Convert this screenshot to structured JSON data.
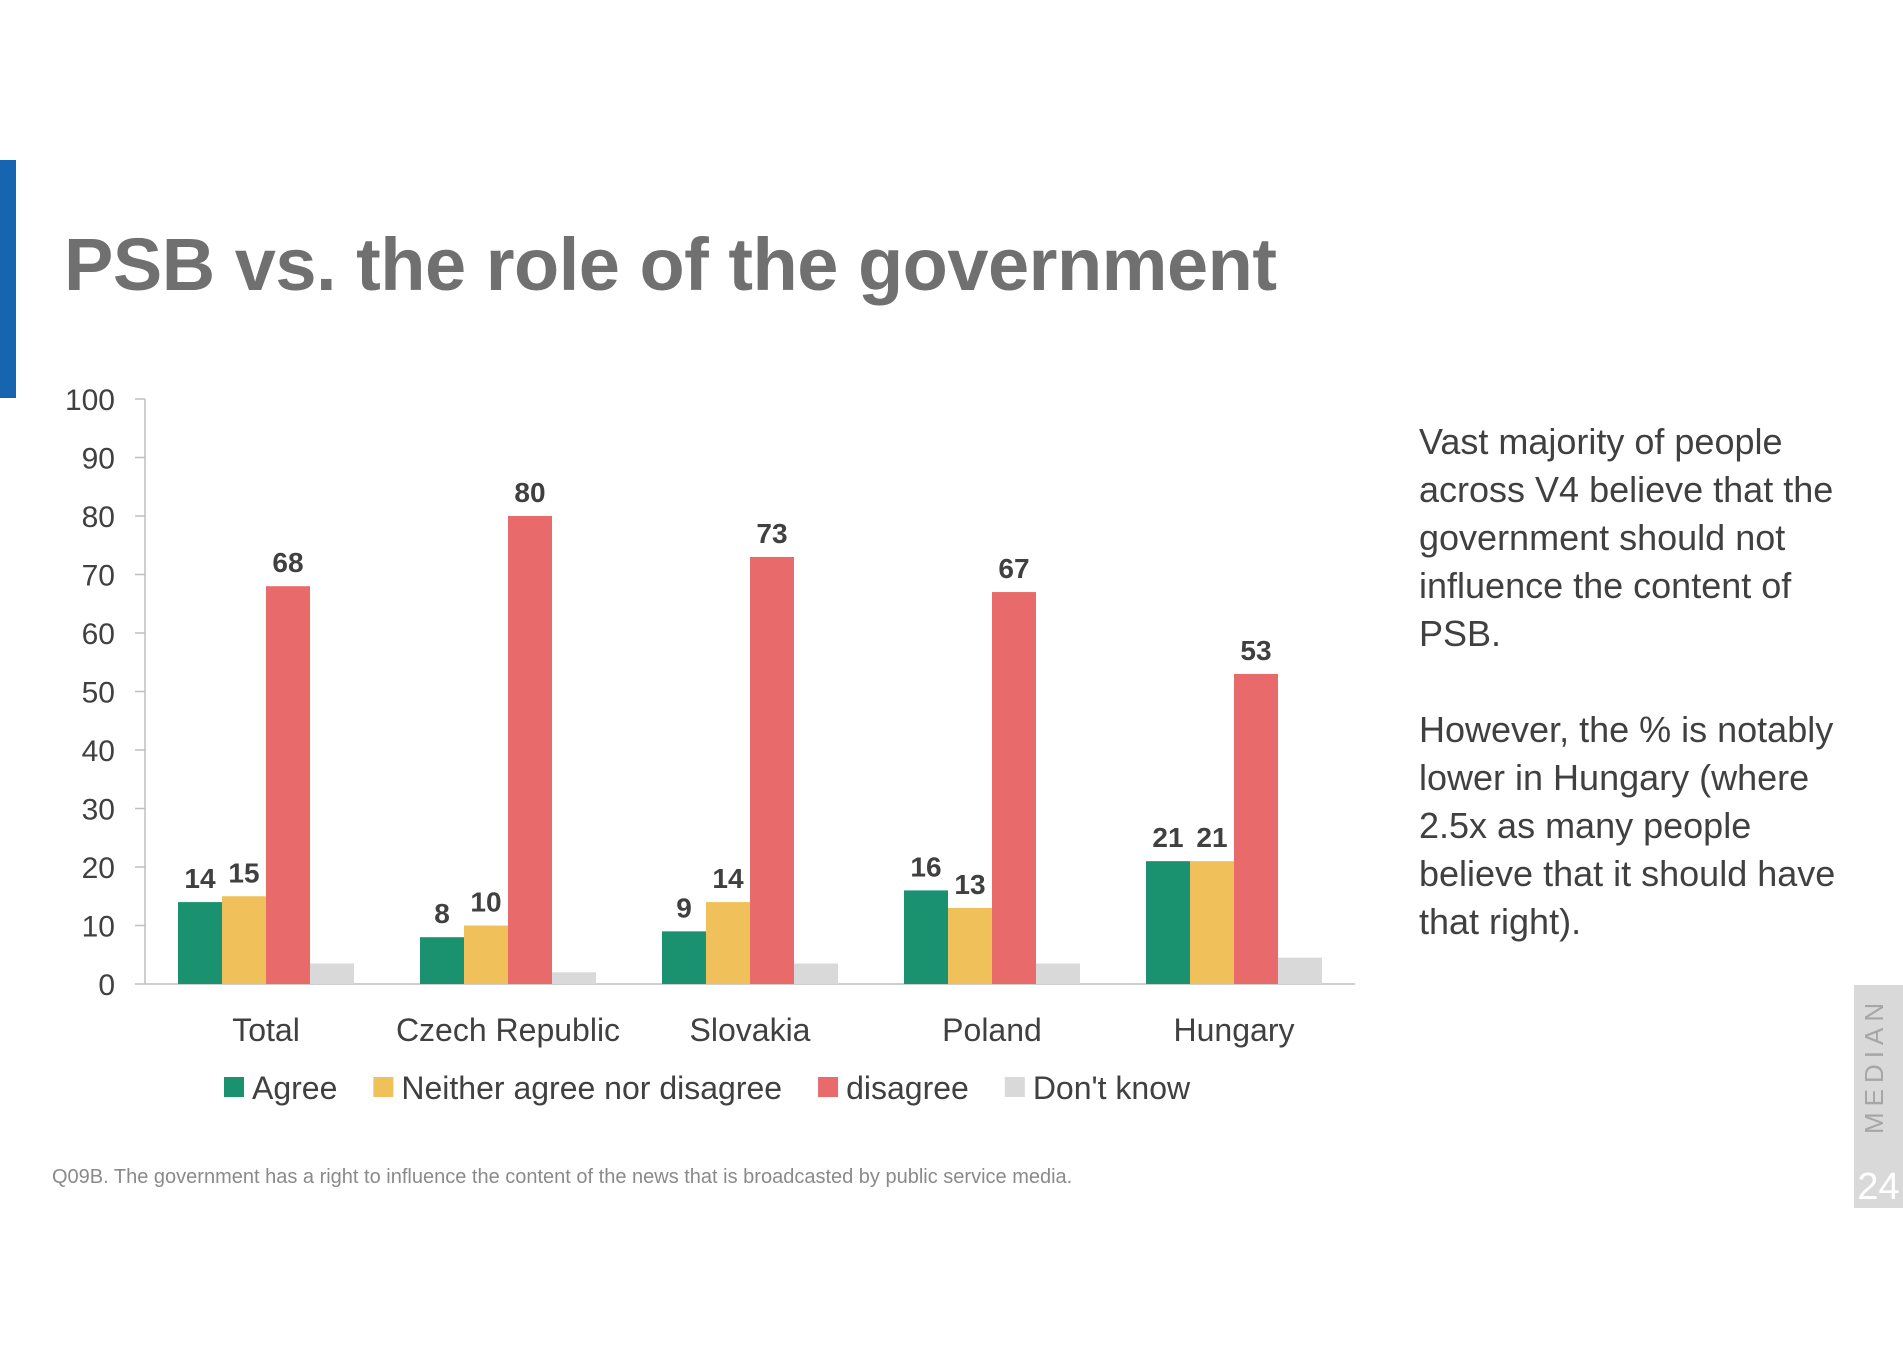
{
  "slide": {
    "title": "PSB vs. the role of the government",
    "commentary": [
      "Vast majority of people across V4 believe that the government should not influence the content of PSB.",
      "However, the % is notably lower in Hungary (where 2.5x as many people believe that it should have that right)."
    ],
    "footnote": "Q09B. The government has a right to influence the content of the news that is broadcasted by public service media.",
    "brand": "MEDIAN",
    "page_number": "24"
  },
  "colors": {
    "accent": "#1764b0",
    "agree": "#1a9270",
    "neither": "#f0c05a",
    "disagree": "#e96a6a",
    "dont_know": "#d9d9d9"
  },
  "chart_data": {
    "type": "bar",
    "title": "",
    "xlabel": "",
    "ylabel": "",
    "ylim": [
      0,
      100
    ],
    "yticks": [
      0,
      10,
      20,
      30,
      40,
      50,
      60,
      70,
      80,
      90,
      100
    ],
    "categories": [
      "Total",
      "Czech Republic",
      "Slovakia",
      "Poland",
      "Hungary"
    ],
    "series": [
      {
        "name": "Agree",
        "color": "#1a9270",
        "values": [
          14,
          8,
          9,
          16,
          21
        ],
        "labels": [
          "14",
          "8",
          "9",
          "16",
          "21"
        ]
      },
      {
        "name": "Neither agree nor disagree",
        "color": "#f0c05a",
        "values": [
          15,
          10,
          14,
          13,
          21
        ],
        "labels": [
          "15",
          "10",
          "14",
          "13",
          "21"
        ]
      },
      {
        "name": "disagree",
        "color": "#e96a6a",
        "values": [
          68,
          80,
          73,
          67,
          53
        ],
        "labels": [
          "68",
          "80",
          "73",
          "67",
          "53"
        ]
      },
      {
        "name": "Don't know",
        "color": "#d9d9d9",
        "values": [
          3.5,
          2,
          3.5,
          3.5,
          4.5
        ],
        "labels": null
      }
    ],
    "grid": false,
    "legend_position": "bottom"
  }
}
